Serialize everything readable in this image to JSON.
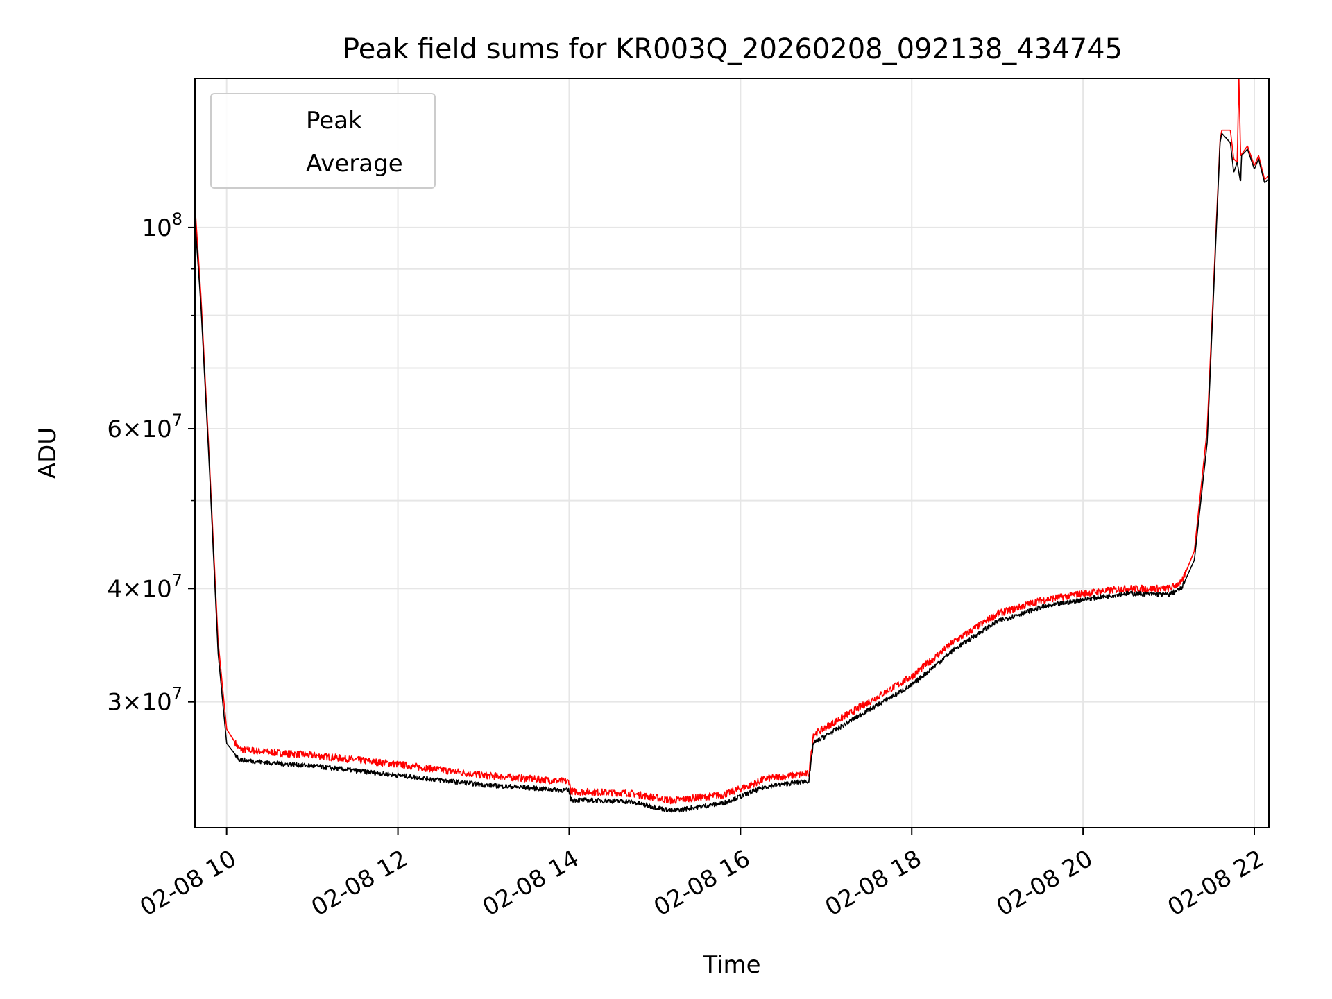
{
  "chart_data": {
    "type": "line",
    "title": "Peak field sums for KR003Q_20260208_092138_434745",
    "xlabel": "Time",
    "ylabel": "ADU",
    "yscale": "log",
    "grid": true,
    "legend_position": "upper-left",
    "x_unit": "hours (2026-02-08)",
    "xlim": [
      9.63,
      22.17
    ],
    "ylim": [
      21800000,
      146000000
    ],
    "x_ticks": [
      {
        "value": 10,
        "label": "02-08 10"
      },
      {
        "value": 12,
        "label": "02-08 12"
      },
      {
        "value": 14,
        "label": "02-08 14"
      },
      {
        "value": 16,
        "label": "02-08 16"
      },
      {
        "value": 18,
        "label": "02-08 18"
      },
      {
        "value": 20,
        "label": "02-08 20"
      },
      {
        "value": 22,
        "label": "02-08 22"
      }
    ],
    "y_ticks": [
      {
        "value": 100000000,
        "base": "10",
        "exp": "8"
      },
      {
        "value": 60000000,
        "base": "6×10",
        "exp": "7"
      },
      {
        "value": 40000000,
        "base": "4×10",
        "exp": "7"
      },
      {
        "value": 30000000,
        "base": "3×10",
        "exp": "7"
      }
    ],
    "y_minor_ticks": [
      50000000,
      70000000,
      80000000,
      90000000
    ],
    "series": [
      {
        "name": "Peak",
        "color": "#ff0000",
        "points": [
          [
            9.63,
            106000000
          ],
          [
            9.7,
            84000000
          ],
          [
            9.8,
            55000000
          ],
          [
            9.9,
            35000000
          ],
          [
            10.0,
            28000000
          ],
          [
            10.15,
            26600000
          ],
          [
            10.5,
            26400000
          ],
          [
            11.0,
            26200000
          ],
          [
            12.0,
            25600000
          ],
          [
            13.0,
            24900000
          ],
          [
            14.0,
            24500000
          ],
          [
            14.02,
            23900000
          ],
          [
            14.7,
            23800000
          ],
          [
            15.2,
            23350000
          ],
          [
            15.8,
            23700000
          ],
          [
            16.1,
            24250000
          ],
          [
            16.3,
            24700000
          ],
          [
            16.8,
            25000000
          ],
          [
            16.85,
            27600000
          ],
          [
            17.5,
            30000000
          ],
          [
            18.0,
            32000000
          ],
          [
            18.5,
            35000000
          ],
          [
            19.0,
            37500000
          ],
          [
            19.5,
            38800000
          ],
          [
            20.0,
            39500000
          ],
          [
            20.5,
            40000000
          ],
          [
            21.0,
            40000000
          ],
          [
            21.15,
            40600000
          ],
          [
            21.3,
            44000000
          ],
          [
            21.45,
            60000000
          ],
          [
            21.6,
            125000000
          ],
          [
            21.62,
            128000000
          ],
          [
            21.72,
            128000000
          ],
          [
            21.76,
            119000000
          ],
          [
            21.8,
            118000000
          ],
          [
            21.82,
            146000000
          ],
          [
            21.84,
            120000000
          ],
          [
            21.92,
            123000000
          ],
          [
            22.0,
            117000000
          ],
          [
            22.05,
            120000000
          ],
          [
            22.12,
            113000000
          ],
          [
            22.17,
            114000000
          ]
        ]
      },
      {
        "name": "Average",
        "color": "#000000",
        "points": [
          [
            9.63,
            102000000
          ],
          [
            9.7,
            82000000
          ],
          [
            9.8,
            54000000
          ],
          [
            9.9,
            34000000
          ],
          [
            10.0,
            27000000
          ],
          [
            10.15,
            25900000
          ],
          [
            10.5,
            25700000
          ],
          [
            11.0,
            25500000
          ],
          [
            12.0,
            24900000
          ],
          [
            13.0,
            24300000
          ],
          [
            14.0,
            23950000
          ],
          [
            14.02,
            23400000
          ],
          [
            14.7,
            23300000
          ],
          [
            15.2,
            22750000
          ],
          [
            15.8,
            23200000
          ],
          [
            16.1,
            23800000
          ],
          [
            16.3,
            24200000
          ],
          [
            16.8,
            24550000
          ],
          [
            16.85,
            27000000
          ],
          [
            17.5,
            29400000
          ],
          [
            18.0,
            31300000
          ],
          [
            18.5,
            34300000
          ],
          [
            19.0,
            36800000
          ],
          [
            19.5,
            38100000
          ],
          [
            20.0,
            38900000
          ],
          [
            20.5,
            39500000
          ],
          [
            21.0,
            39400000
          ],
          [
            21.15,
            40000000
          ],
          [
            21.3,
            43000000
          ],
          [
            21.45,
            58000000
          ],
          [
            21.6,
            124000000
          ],
          [
            21.62,
            127000000
          ],
          [
            21.72,
            124000000
          ],
          [
            21.76,
            115000000
          ],
          [
            21.8,
            118000000
          ],
          [
            21.84,
            112000000
          ],
          [
            21.85,
            120000000
          ],
          [
            21.92,
            122000000
          ],
          [
            22.0,
            116000000
          ],
          [
            22.05,
            119000000
          ],
          [
            22.12,
            112000000
          ],
          [
            22.17,
            113000000
          ]
        ]
      }
    ]
  }
}
